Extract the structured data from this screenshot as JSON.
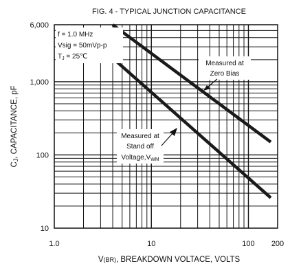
{
  "chart_data": {
    "type": "line",
    "title": "FIG. 4 - TYPICAL JUNCTION CAPACITANCE",
    "xlabel": {
      "pre": "V",
      "sub": "(BR)",
      "post": ", BREAKDOWN VOLTACE, VOLTS"
    },
    "ylabel": {
      "pre": "C",
      "sub": "J",
      "post": ", CAPACITANCE, pF"
    },
    "x_scale": "log",
    "y_scale": "log",
    "xlim": [
      1,
      200
    ],
    "ylim": [
      10,
      6000
    ],
    "grid": true,
    "x_ticks": [
      {
        "value": 1,
        "label": "1.0"
      },
      {
        "value": 10,
        "label": "10"
      },
      {
        "value": 100,
        "label": "100"
      },
      {
        "value": 200,
        "label": "200"
      }
    ],
    "y_ticks": [
      {
        "value": 10,
        "label": "10"
      },
      {
        "value": 100,
        "label": "100"
      },
      {
        "value": 1000,
        "label": "1,000"
      },
      {
        "value": 6000,
        "label": "6,000"
      }
    ],
    "conditions": {
      "line1": "f = 1.0 MHz",
      "line2": "Vsig = 50mVp-p",
      "line3_pre": "T",
      "line3_sub": "J",
      "line3_post": " = 25℃"
    },
    "series": [
      {
        "annotation": [
          "Measured at",
          "Zero Bias"
        ],
        "x": [
          4,
          170
        ],
        "y": [
          6000,
          150
        ]
      },
      {
        "annotation": [
          "Measured at",
          "Stand off",
          "Voltage,V"
        ],
        "annotation_sub": "WM",
        "x": [
          4,
          170
        ],
        "y": [
          2100,
          26
        ]
      }
    ]
  }
}
